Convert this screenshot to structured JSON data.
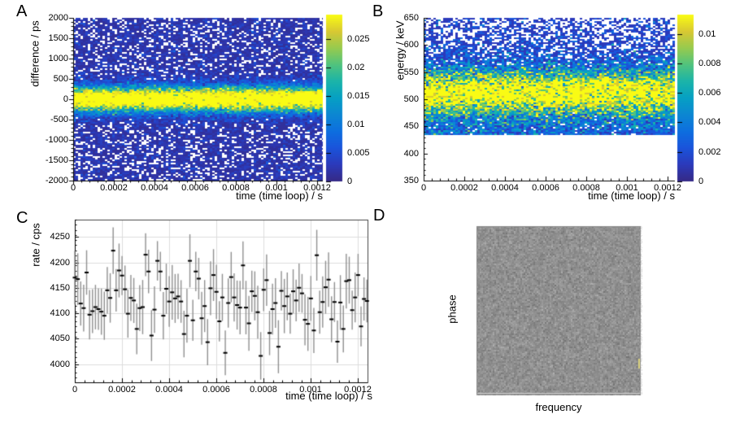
{
  "figure": {
    "background": "#ffffff",
    "colormap": "parula",
    "panel_letters": [
      "A",
      "B",
      "C",
      "D"
    ]
  },
  "chart_data": [
    {
      "panel_label": "A",
      "type": "heatmap",
      "xlabel": "time (time loop) / s",
      "ylabel": "difference / ps",
      "xlim": [
        0,
        0.001228
      ],
      "ylim": [
        -2000,
        2000
      ],
      "x_ticks": [
        0,
        0.0002,
        0.0004,
        0.0006,
        0.0008,
        0.001,
        0.0012
      ],
      "x_tick_labels": [
        "0",
        "0.0002",
        "0.0004",
        "0.0006",
        "0.0008",
        "0.001",
        "0.0012"
      ],
      "y_ticks": [
        2000,
        1500,
        1000,
        500,
        0,
        -500,
        -1000,
        -1500,
        -2000
      ],
      "y_tick_labels": [
        "2000",
        "1500",
        "1000",
        "500",
        "0",
        "-500",
        "-1000",
        "-1500",
        "-2000"
      ],
      "y_minor_step": 100,
      "x_minor_step": 4e-05,
      "colorbar": {
        "zmax": 0.0293,
        "ticks": [
          0,
          0.005,
          0.01,
          0.015,
          0.02,
          0.025
        ],
        "tick_labels": [
          "0",
          "0.005",
          "0.01",
          "0.015",
          "0.02",
          "0.025"
        ]
      },
      "distribution": {
        "description": "horizontal bright band centered at 0 ps over speckled dark-blue background with empty white bins",
        "band_center": 0,
        "band_sigma": 200,
        "band_peak_value": 0.038,
        "background_empty_fraction": 0.2
      }
    },
    {
      "panel_label": "B",
      "type": "heatmap",
      "xlabel": "time (time loop) / s",
      "ylabel": "energy / keV",
      "xlim": [
        0,
        0.001236
      ],
      "ylim": [
        350,
        650
      ],
      "x_ticks": [
        0,
        0.0002,
        0.0004,
        0.0006,
        0.0008,
        0.001,
        0.0012
      ],
      "x_tick_labels": [
        "0",
        "0.0002",
        "0.0004",
        "0.0006",
        "0.0008",
        "0.001",
        "0.0012"
      ],
      "y_ticks": [
        650,
        600,
        550,
        500,
        450,
        400,
        350
      ],
      "y_tick_labels": [
        "650",
        "600",
        "550",
        "500",
        "450",
        "400",
        "350"
      ],
      "y_minor_step": 10,
      "x_minor_step": 4e-05,
      "colorbar": {
        "zmax": 0.0113,
        "ticks": [
          0,
          0.002,
          0.004,
          0.006,
          0.008,
          0.01
        ],
        "tick_labels": [
          "0",
          "0.002",
          "0.004",
          "0.006",
          "0.008",
          "0.01"
        ]
      },
      "distribution": {
        "description": "photopeak band near 511 keV, Compton pedestal down to 435 keV, sparse speckled background above 580 keV, no data below 435 keV",
        "band_center": 511,
        "band_sigma": 26,
        "band_peak_value": 0.011,
        "pedestal_value": 0.0027,
        "pedestal_fade_start": 545,
        "pedestal_mid_energy": 575,
        "pedestal_mid_value": 0.0015,
        "top_value": 0.0008,
        "data_min": 435
      }
    },
    {
      "panel_label": "C",
      "type": "scatter",
      "xlabel": "time (time loop) / s",
      "ylabel": "rate / cps",
      "xlim": [
        0,
        0.00124
      ],
      "ylim": [
        3964,
        4284
      ],
      "x_ticks": [
        0,
        0.0002,
        0.0004,
        0.0006,
        0.0008,
        0.001,
        0.0012
      ],
      "x_tick_labels": [
        "0",
        "0.0002",
        "0.0004",
        "0.0006",
        "0.0008",
        "0.001",
        "0.0012"
      ],
      "y_ticks": [
        4250,
        4200,
        4150,
        4100,
        4050,
        4000
      ],
      "y_tick_labels": [
        "4250",
        "4200",
        "4150",
        "4100",
        "4050",
        "4000"
      ],
      "y_minor_step": 10,
      "x_minor_step": 4e-05,
      "grid": true,
      "x_start": 0,
      "x_step": 1.25e-05,
      "values": [
        4170,
        4167,
        4119,
        4110,
        4180,
        4097,
        4104,
        4112,
        4108,
        4103,
        4095,
        4145,
        4130,
        4223,
        4145,
        4184,
        4174,
        4147,
        4099,
        4130,
        4125,
        4069,
        4110,
        4112,
        4215,
        4182,
        4056,
        4107,
        4203,
        4182,
        4095,
        4148,
        4123,
        4141,
        4129,
        4133,
        4123,
        4059,
        4095,
        4203,
        4086,
        4182,
        4168,
        4090,
        4114,
        4043,
        4149,
        4175,
        4142,
        4084,
        4131,
        4022,
        4120,
        4171,
        4131,
        4116,
        4111,
        4194,
        4111,
        4080,
        4143,
        4134,
        4102,
        4016,
        4146,
        4165,
        4061,
        4108,
        4120,
        4034,
        4144,
        4114,
        4133,
        4099,
        4143,
        4125,
        4150,
        4139,
        4087,
        4079,
        4129,
        4066,
        4214,
        4102,
        4122,
        4151,
        4166,
        4088,
        4122,
        4044,
        4121,
        4069,
        4163,
        4165,
        4106,
        4131,
        4175,
        4074,
        4128,
        4124
      ],
      "y_err_approx": 46,
      "marker_color": "#000000",
      "error_bar_color": "#8f8f8f",
      "grid_color": "#dcdcdc"
    },
    {
      "panel_label": "D",
      "type": "image",
      "xlabel": "frequency",
      "ylabel": "phase",
      "content": "uniform grayscale speckle noise (flat phase/frequency map)",
      "mean_gray": "#909090",
      "noise_sigma_gray": 12,
      "artifact": {
        "color": "#ddd480",
        "location": "right edge, about 80% down"
      }
    }
  ]
}
